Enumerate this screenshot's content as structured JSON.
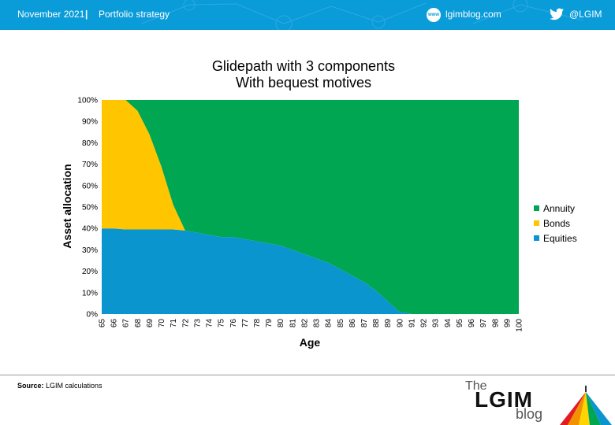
{
  "header": {
    "date": "November 2021",
    "separator": "|",
    "category": "Portfolio strategy",
    "site": "lgimblog.com",
    "site_icon_text": "www",
    "twitter": "@LGIM",
    "bg_color": "#0a9bd9"
  },
  "chart_data": {
    "type": "area",
    "stacked": true,
    "title": "Glidepath with 3 components",
    "subtitle": "With bequest motives",
    "xlabel": "Age",
    "ylabel": "Asset allocation",
    "x": [
      65,
      66,
      67,
      68,
      69,
      70,
      71,
      72,
      73,
      74,
      75,
      76,
      77,
      78,
      79,
      80,
      81,
      82,
      83,
      84,
      85,
      86,
      87,
      88,
      89,
      90,
      91,
      92,
      93,
      94,
      95,
      96,
      97,
      98,
      99,
      100
    ],
    "y_ticks": [
      "0%",
      "10%",
      "20%",
      "30%",
      "40%",
      "50%",
      "60%",
      "70%",
      "80%",
      "90%",
      "100%"
    ],
    "ylim": [
      0,
      100
    ],
    "grid": false,
    "legend_position": "right",
    "series": [
      {
        "name": "Annuity",
        "color": "#00a651",
        "values": [
          0,
          0,
          0,
          5,
          16,
          31,
          49,
          61,
          62,
          63,
          64,
          64,
          65,
          66,
          67,
          68,
          70,
          72,
          74,
          76,
          79,
          82,
          85,
          89,
          94,
          99,
          100,
          100,
          100,
          100,
          100,
          100,
          100,
          100,
          100,
          100
        ]
      },
      {
        "name": "Bonds",
        "color": "#ffc600",
        "values": [
          60,
          60,
          60.5,
          55.5,
          44.5,
          29.5,
          11.5,
          0,
          0,
          0,
          0,
          0,
          0,
          0,
          0,
          0,
          0,
          0,
          0,
          0,
          0,
          0,
          0,
          0,
          0,
          0,
          0,
          0,
          0,
          0,
          0,
          0,
          0,
          0,
          0,
          0
        ]
      },
      {
        "name": "Equities",
        "color": "#0b95cf",
        "values": [
          40,
          40,
          39.5,
          39.5,
          39.5,
          39.5,
          39.5,
          39,
          38,
          37,
          36,
          36,
          35,
          34,
          33,
          32,
          30,
          28,
          26,
          24,
          21,
          18,
          15,
          11,
          6,
          1,
          0,
          0,
          0,
          0,
          0,
          0,
          0,
          0,
          0,
          0
        ]
      }
    ]
  },
  "footer": {
    "source_label": "Source:",
    "source_text": "LGIM calculations",
    "logo_the": "The",
    "logo_main": "LGIM",
    "logo_blog": "blog"
  }
}
